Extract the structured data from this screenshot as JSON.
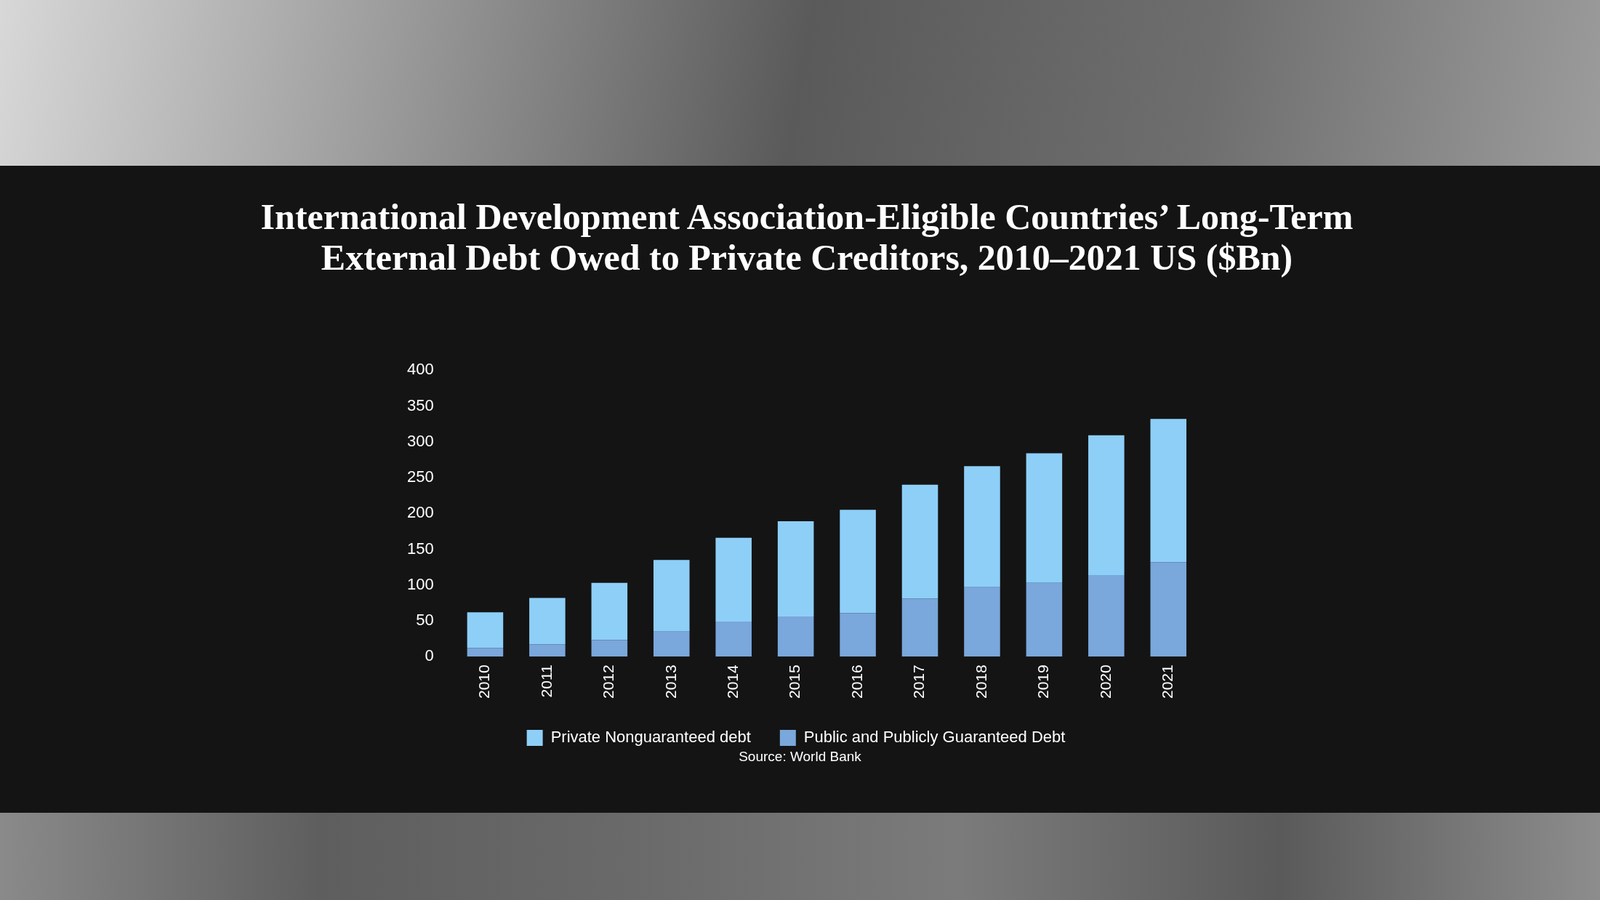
{
  "chart_data": {
    "type": "bar",
    "title": "International Development Association-Eligible Countries’ Long-Term External Debt Owed to Private Creditors, 2010–2021 US ($Bn)",
    "source": "Source: World Bank",
    "categories": [
      "2010",
      "2011",
      "2012",
      "2013",
      "2014",
      "2015",
      "2016",
      "2017",
      "2018",
      "2019",
      "2020",
      "2021"
    ],
    "series": [
      {
        "name": "Private Nonguaranteed debt",
        "color": "#8ecff8",
        "values": [
          50,
          65,
          80,
          100,
          117,
          133,
          144,
          159,
          169,
          181,
          195,
          200
        ]
      },
      {
        "name": "Public and Publicly Guaranteed Debt",
        "color": "#7aa7dc",
        "values": [
          12,
          17,
          23,
          35,
          49,
          56,
          61,
          81,
          97,
          103,
          114,
          132
        ]
      }
    ],
    "stacked": true,
    "ylim": [
      0,
      400
    ],
    "yticks": [
      0,
      50,
      100,
      150,
      200,
      250,
      300,
      350,
      400
    ],
    "grid": false,
    "legend": "bottom"
  }
}
